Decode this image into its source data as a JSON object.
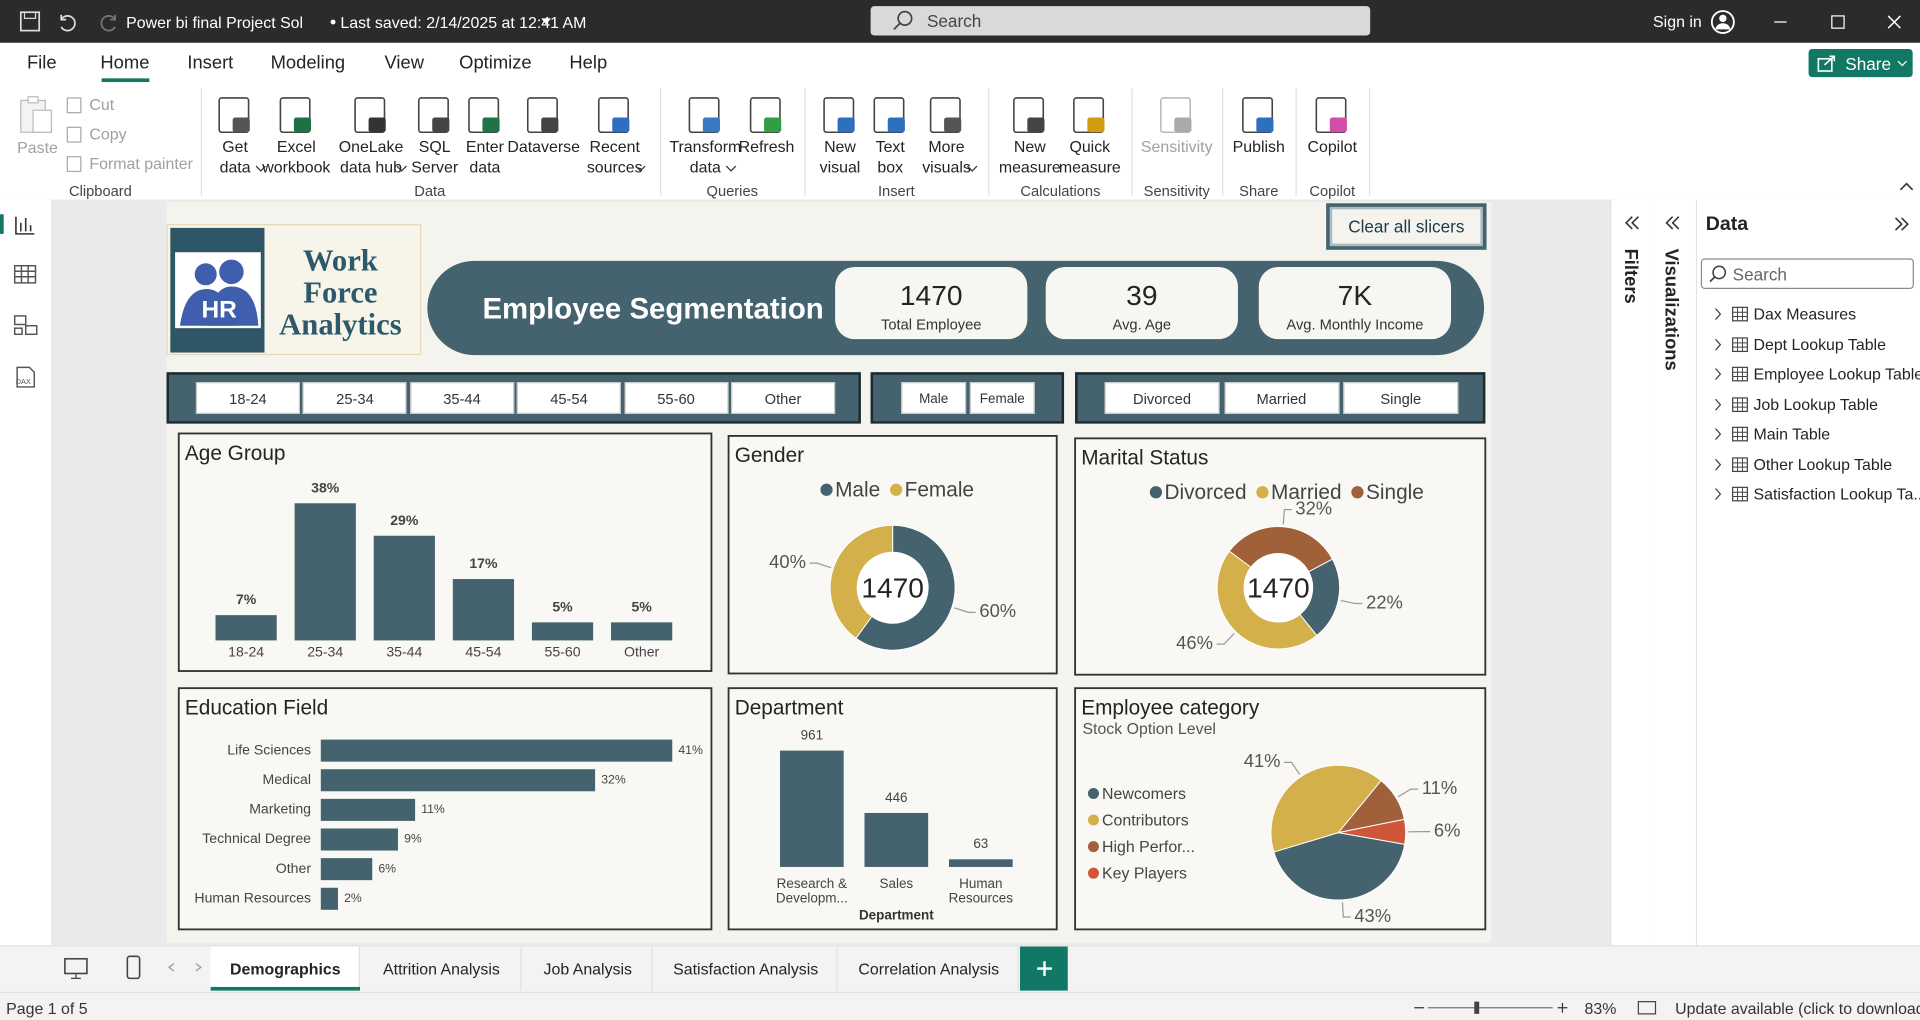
{
  "window": {
    "doc_name": "Power bi final Project Sol",
    "saved": "Last saved: 2/14/2025 at 12:41 AM",
    "search": "Search",
    "sign_in": "Sign in"
  },
  "menu": {
    "items": [
      "File",
      "Home",
      "Insert",
      "Modeling",
      "View",
      "Optimize",
      "Help"
    ],
    "active": 1,
    "share": "Share"
  },
  "ribbon": {
    "paste": "Paste",
    "small": [
      "Cut",
      "Copy",
      "Format painter"
    ],
    "buttons": [
      {
        "label": [
          "Get",
          "data"
        ]
      },
      {
        "label": [
          "Excel",
          "workbook"
        ]
      },
      {
        "label": [
          "OneLake",
          "data hub"
        ]
      },
      {
        "label": [
          "SQL",
          "Server"
        ]
      },
      {
        "label": [
          "Enter",
          "data"
        ]
      },
      {
        "label": [
          "Dataverse"
        ]
      },
      {
        "label": [
          "Recent",
          "sources"
        ]
      },
      {
        "label": [
          "Transform",
          "data"
        ]
      },
      {
        "label": [
          "Refresh"
        ]
      },
      {
        "label": [
          "New",
          "visual"
        ]
      },
      {
        "label": [
          "Text",
          "box"
        ]
      },
      {
        "label": [
          "More",
          "visuals"
        ]
      },
      {
        "label": [
          "New",
          "measure"
        ]
      },
      {
        "label": [
          "Quick",
          "measure"
        ]
      },
      {
        "label": [
          "Sensitivity"
        ]
      },
      {
        "label": [
          "Publish"
        ]
      },
      {
        "label": [
          "Copilot"
        ]
      }
    ],
    "groups": [
      "Clipboard",
      "Data",
      "Queries",
      "Insert",
      "Calculations",
      "Sensitivity",
      "Share",
      "Copilot"
    ]
  },
  "report": {
    "logo_lines": [
      "Work",
      "Force",
      "Analytics"
    ],
    "badge": "HR",
    "banner": "Employee Segmentation",
    "kpis": [
      {
        "value": "1470",
        "label": "Total Employee"
      },
      {
        "value": "39",
        "label": "Avg. Age"
      },
      {
        "value": "7K",
        "label": "Avg. Monthly Income"
      }
    ],
    "clear": "Clear all slicers",
    "slicers": [
      [
        "18-24",
        "25-34",
        "35-44",
        "45-54",
        "55-60",
        "Other"
      ],
      [
        "Male",
        "Female"
      ],
      [
        "Divorced",
        "Married",
        "Single"
      ]
    ]
  },
  "chart_data": [
    {
      "type": "bar",
      "title": "Age Group",
      "categories": [
        "18-24",
        "25-34",
        "35-44",
        "45-54",
        "55-60",
        "Other"
      ],
      "values": [
        7,
        38,
        29,
        17,
        5,
        5
      ],
      "value_labels": [
        "7%",
        "38%",
        "29%",
        "17%",
        "5%",
        "5%"
      ],
      "color": "#44636e"
    },
    {
      "type": "donut",
      "title": "Gender",
      "categories": [
        "Male",
        "Female"
      ],
      "values": [
        60,
        40
      ],
      "value_labels": [
        "60%",
        "40%"
      ],
      "colors": [
        "#44636e",
        "#d4b04a"
      ],
      "center_label": "1470"
    },
    {
      "type": "donut",
      "title": "Marital Status",
      "categories": [
        "Divorced",
        "Married",
        "Single"
      ],
      "values": [
        22,
        46,
        32
      ],
      "value_labels": [
        "22%",
        "46%",
        "32%"
      ],
      "colors": [
        "#44636e",
        "#d4b04a",
        "#a0603a"
      ],
      "center_label": "1470"
    },
    {
      "type": "hbar",
      "title": "Education Field",
      "categories": [
        "Life Sciences",
        "Medical",
        "Marketing",
        "Technical Degree",
        "Other",
        "Human Resources"
      ],
      "values": [
        41,
        32,
        11,
        9,
        6,
        2
      ],
      "value_labels": [
        "41%",
        "32%",
        "11%",
        "9%",
        "6%",
        "2%"
      ],
      "color": "#44636e"
    },
    {
      "type": "bar",
      "title": "Department",
      "categories": [
        "Research & Developm...",
        "Sales",
        "Human Resources"
      ],
      "values": [
        961,
        446,
        63
      ],
      "color": "#44636e",
      "x_label": "Department"
    },
    {
      "type": "pie",
      "title": "Employee category",
      "subtitle": "Stock Option Level",
      "categories": [
        "Newcomers",
        "Contributors",
        "High Perfor...",
        "Key Players"
      ],
      "values": [
        43,
        41,
        11,
        6
      ],
      "value_labels": [
        "43%",
        "41%",
        "11%",
        "6%"
      ],
      "colors": [
        "#44636e",
        "#d4b04a",
        "#a0603a",
        "#d0563a"
      ]
    }
  ],
  "panes": {
    "filters": "Filters",
    "visualizations": "Visualizations",
    "data": {
      "title": "Data",
      "search": "Search",
      "tables": [
        "Dax Measures",
        "Dept Lookup Table",
        "Employee Lookup Table",
        "Job Lookup Table",
        "Main Table",
        "Other Lookup Table",
        "Satisfaction Lookup Ta..."
      ]
    }
  },
  "tabs": {
    "pages": [
      "Demographics",
      "Attrition Analysis",
      "Job Analysis",
      "Satisfaction Analysis",
      "Correlation Analysis"
    ],
    "active": 0
  },
  "status": {
    "page": "Page 1 of 5",
    "zoom": "83%",
    "update": "Update available (click to download)"
  }
}
